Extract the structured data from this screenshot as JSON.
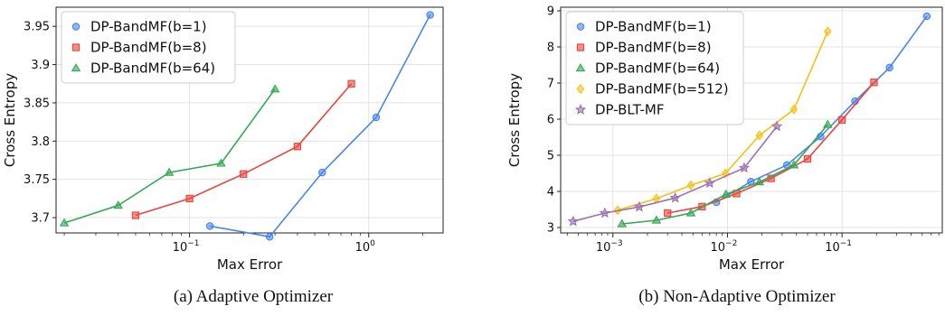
{
  "captions": [
    "(a) Adaptive Optimizer",
    "(b) Non-Adaptive Optimizer"
  ],
  "chart_data": [
    {
      "type": "line",
      "xscale": "log",
      "xlabel": "Max Error",
      "ylabel": "Cross Entropy",
      "xlim": [
        0.018,
        2.6
      ],
      "ylim": [
        3.68,
        3.975
      ],
      "x_ticks": [
        0.1,
        1
      ],
      "x_tick_labels": [
        {
          "base": "10",
          "exp": "−1"
        },
        {
          "base": "10",
          "exp": "0"
        }
      ],
      "y_ticks": [
        3.7,
        3.75,
        3.8,
        3.85,
        3.9,
        3.95
      ],
      "y_tick_labels": [
        "3.7",
        "3.75",
        "3.8",
        "3.85",
        "3.9",
        "3.95"
      ],
      "grid": true,
      "legend": "top-left",
      "series": [
        {
          "name": "DP-BandMF(b=1)",
          "color": "#4a86e8",
          "marker": "circle",
          "x": [
            0.13,
            0.28,
            0.55,
            1.1,
            2.2
          ],
          "y": [
            3.689,
            3.675,
            3.759,
            3.831,
            3.965
          ]
        },
        {
          "name": "DP-BandMF(b=8)",
          "color": "#e8463c",
          "marker": "square",
          "x": [
            0.05,
            0.1,
            0.2,
            0.4,
            0.8
          ],
          "y": [
            3.703,
            3.725,
            3.757,
            3.793,
            3.875
          ]
        },
        {
          "name": "DP-BandMF(b=64)",
          "color": "#34a853",
          "marker": "triangle",
          "x": [
            0.02,
            0.04,
            0.077,
            0.15,
            0.3
          ],
          "y": [
            3.693,
            3.716,
            3.759,
            3.771,
            3.868
          ]
        }
      ]
    },
    {
      "type": "line",
      "xscale": "log",
      "xlabel": "Max Error",
      "ylabel": "Cross Entropy",
      "xlim": [
        0.00035,
        0.75
      ],
      "ylim": [
        2.85,
        9.1
      ],
      "x_ticks": [
        0.001,
        0.01,
        0.1
      ],
      "x_tick_labels": [
        {
          "base": "10",
          "exp": "−3"
        },
        {
          "base": "10",
          "exp": "−2"
        },
        {
          "base": "10",
          "exp": "−1"
        }
      ],
      "y_ticks": [
        3,
        4,
        5,
        6,
        7,
        8,
        9
      ],
      "y_tick_labels": [
        "3",
        "4",
        "5",
        "6",
        "7",
        "8",
        "9"
      ],
      "grid": true,
      "legend": "top-left",
      "series": [
        {
          "name": "DP-BandMF(b=1)",
          "color": "#4a86e8",
          "marker": "circle",
          "x": [
            0.008,
            0.016,
            0.033,
            0.065,
            0.13,
            0.26,
            0.55
          ],
          "y": [
            3.7,
            4.27,
            4.73,
            5.52,
            6.5,
            7.43,
            8.85
          ]
        },
        {
          "name": "DP-BandMF(b=8)",
          "color": "#e8463c",
          "marker": "square",
          "x": [
            0.003,
            0.006,
            0.012,
            0.024,
            0.05,
            0.1,
            0.19
          ],
          "y": [
            3.4,
            3.58,
            3.94,
            4.36,
            4.9,
            5.98,
            7.02
          ]
        },
        {
          "name": "DP-BandMF(b=64)",
          "color": "#34a853",
          "marker": "triangle",
          "x": [
            0.0012,
            0.0024,
            0.0048,
            0.0097,
            0.019,
            0.038,
            0.075
          ],
          "y": [
            3.1,
            3.2,
            3.4,
            3.92,
            4.26,
            4.73,
            5.85
          ]
        },
        {
          "name": "DP-BandMF(b=512)",
          "color": "#f5c118",
          "marker": "diamond",
          "x": [
            0.0011,
            0.0024,
            0.0048,
            0.0096,
            0.019,
            0.038,
            0.075
          ],
          "y": [
            3.48,
            3.8,
            4.17,
            4.5,
            5.55,
            6.27,
            8.43
          ]
        },
        {
          "name": "DP-BLT-MF",
          "color": "#9b72b0",
          "marker": "star",
          "x": [
            0.00045,
            0.00085,
            0.0017,
            0.0035,
            0.007,
            0.014,
            0.027
          ],
          "y": [
            3.17,
            3.4,
            3.57,
            3.82,
            4.23,
            4.65,
            5.8
          ]
        }
      ]
    }
  ]
}
